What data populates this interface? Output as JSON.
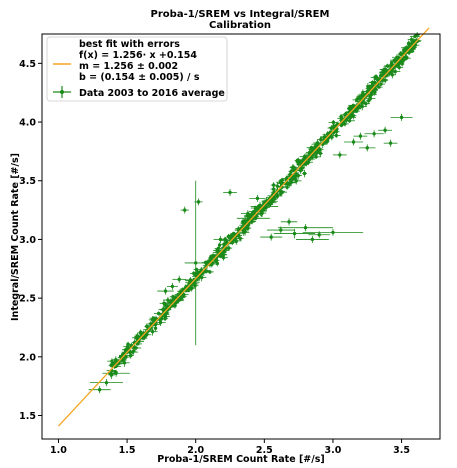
{
  "chart_data": {
    "type": "scatter",
    "title": "Proba-1/SREM vs Integral/SREM",
    "subtitle": "Calibration",
    "xlabel": "Proba-1/SREM Count Rate [#/s]",
    "ylabel": "Integral/SREM Count Rate [#/s]",
    "xlim": [
      0.88,
      3.78
    ],
    "ylim": [
      1.3,
      4.75
    ],
    "x_ticks": [
      "1.0",
      "1.5",
      "2.0",
      "2.5",
      "3.0",
      "3.5"
    ],
    "y_ticks": [
      "1.5",
      "2.0",
      "2.5",
      "3.0",
      "3.5",
      "4.0",
      "4.5"
    ],
    "grid": false,
    "legend_position": "top-left",
    "fit": {
      "label": "best fit with errors",
      "equation": "f(x) = 1.256· x +0.154",
      "slope_text": "m = 1.256 ± 0.002",
      "intercept_text": "b = (0.154 ± 0.005) / s",
      "slope": 1.256,
      "intercept": 0.154,
      "x_range": [
        1.0,
        3.7
      ],
      "color": "#f5a623"
    },
    "series": [
      {
        "name": "Data 2003 to 2016 average",
        "color": "#1a8a1a",
        "x_range": [
          1.38,
          3.62
        ],
        "scatter_sd": 0.03,
        "n_points": 700,
        "outliers": [
          {
            "x": 2.0,
            "y": 2.8,
            "xerr": 0.08,
            "yerr": 0.7
          },
          {
            "x": 2.42,
            "y": 3.18,
            "xerr": 0.12,
            "yerr": 0.03
          },
          {
            "x": 2.55,
            "y": 3.02,
            "xerr": 0.08,
            "yerr": 0.03
          },
          {
            "x": 2.62,
            "y": 3.08,
            "xerr": 0.1,
            "yerr": 0.03
          },
          {
            "x": 2.72,
            "y": 3.05,
            "xerr": 0.15,
            "yerr": 0.04
          },
          {
            "x": 2.8,
            "y": 3.1,
            "xerr": 0.2,
            "yerr": 0.03
          },
          {
            "x": 2.85,
            "y": 3.0,
            "xerr": 0.12,
            "yerr": 0.03
          },
          {
            "x": 2.9,
            "y": 3.04,
            "xerr": 0.08,
            "yerr": 0.03
          },
          {
            "x": 3.0,
            "y": 3.06,
            "xerr": 0.22,
            "yerr": 0.03
          },
          {
            "x": 2.38,
            "y": 3.22,
            "xerr": 0.05,
            "yerr": 0.03
          },
          {
            "x": 3.05,
            "y": 3.72,
            "xerr": 0.05,
            "yerr": 0.03
          },
          {
            "x": 3.15,
            "y": 3.83,
            "xerr": 0.07,
            "yerr": 0.03
          },
          {
            "x": 3.2,
            "y": 3.88,
            "xerr": 0.05,
            "yerr": 0.03
          },
          {
            "x": 3.3,
            "y": 3.9,
            "xerr": 0.07,
            "yerr": 0.03
          },
          {
            "x": 3.38,
            "y": 3.93,
            "xerr": 0.05,
            "yerr": 0.03
          },
          {
            "x": 3.5,
            "y": 4.04,
            "xerr": 0.08,
            "yerr": 0.03
          },
          {
            "x": 3.25,
            "y": 3.78,
            "xerr": 0.06,
            "yerr": 0.03
          },
          {
            "x": 3.42,
            "y": 3.82,
            "xerr": 0.05,
            "yerr": 0.03
          },
          {
            "x": 1.92,
            "y": 3.25,
            "xerr": 0.03,
            "yerr": 0.03
          },
          {
            "x": 2.02,
            "y": 3.32,
            "xerr": 0.03,
            "yerr": 0.03
          },
          {
            "x": 2.25,
            "y": 3.4,
            "xerr": 0.05,
            "yerr": 0.03
          },
          {
            "x": 1.78,
            "y": 2.56,
            "xerr": 0.06,
            "yerr": 0.03
          },
          {
            "x": 1.83,
            "y": 2.6,
            "xerr": 0.04,
            "yerr": 0.03
          },
          {
            "x": 1.88,
            "y": 2.66,
            "xerr": 0.05,
            "yerr": 0.03
          },
          {
            "x": 1.35,
            "y": 1.78,
            "xerr": 0.12,
            "yerr": 0.03
          },
          {
            "x": 1.42,
            "y": 1.86,
            "xerr": 0.1,
            "yerr": 0.03
          },
          {
            "x": 1.3,
            "y": 1.72,
            "xerr": 0.08,
            "yerr": 0.03
          },
          {
            "x": 1.52,
            "y": 2.04,
            "xerr": 0.06,
            "yerr": 0.03
          },
          {
            "x": 2.5,
            "y": 3.28,
            "xerr": 0.1,
            "yerr": 0.03
          },
          {
            "x": 2.45,
            "y": 3.35,
            "xerr": 0.06,
            "yerr": 0.03
          },
          {
            "x": 2.18,
            "y": 3.0,
            "xerr": 0.05,
            "yerr": 0.03
          },
          {
            "x": 2.35,
            "y": 3.06,
            "xerr": 0.04,
            "yerr": 0.03
          },
          {
            "x": 2.68,
            "y": 3.15,
            "xerr": 0.06,
            "yerr": 0.03
          }
        ]
      }
    ]
  }
}
